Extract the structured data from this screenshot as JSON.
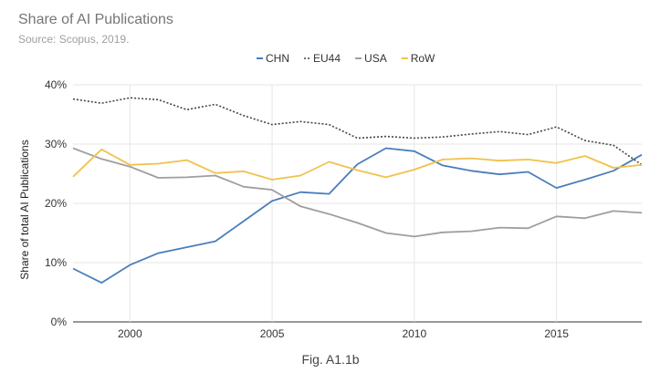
{
  "title": "Share of AI Publications",
  "subtitle": "Source: Scopus, 2019.",
  "caption": "Fig. A1.1b",
  "chart_data": {
    "type": "line",
    "ylabel": "Share of total AI Publications",
    "xlabel": "",
    "xlim": [
      1998,
      2018
    ],
    "ylim": [
      0,
      40
    ],
    "x_ticks": [
      2000,
      2005,
      2010,
      2015
    ],
    "y_ticks": [
      "0%",
      "10%",
      "20%",
      "30%",
      "40%"
    ],
    "grid": true,
    "legend_position": "top",
    "x": [
      1998,
      1999,
      2000,
      2001,
      2002,
      2003,
      2004,
      2005,
      2006,
      2007,
      2008,
      2009,
      2010,
      2011,
      2012,
      2013,
      2014,
      2015,
      2016,
      2017,
      2018
    ],
    "series": [
      {
        "name": "CHN",
        "color": "#4a7ebb",
        "dash": "solid",
        "values": [
          9.0,
          6.6,
          9.6,
          11.6,
          12.6,
          13.6,
          17.0,
          20.4,
          21.9,
          21.6,
          26.6,
          29.3,
          28.8,
          26.4,
          25.5,
          24.9,
          25.3,
          22.6,
          24.0,
          25.5,
          28.2
        ]
      },
      {
        "name": "EU44",
        "color": "#444444",
        "dash": "dotted",
        "values": [
          37.6,
          36.9,
          37.8,
          37.5,
          35.8,
          36.7,
          34.8,
          33.3,
          33.8,
          33.3,
          31.0,
          31.3,
          31.0,
          31.2,
          31.7,
          32.1,
          31.6,
          32.9,
          30.6,
          29.8,
          26.5
        ]
      },
      {
        "name": "USA",
        "color": "#9e9e9e",
        "dash": "solid",
        "values": [
          29.3,
          27.5,
          26.2,
          24.3,
          24.4,
          24.7,
          22.8,
          22.3,
          19.5,
          18.2,
          16.7,
          15.0,
          14.4,
          15.1,
          15.3,
          15.9,
          15.8,
          17.8,
          17.5,
          18.7,
          18.4
        ]
      },
      {
        "name": "RoW",
        "color": "#f0c24b",
        "dash": "solid",
        "values": [
          24.5,
          29.1,
          26.5,
          26.7,
          27.3,
          25.1,
          25.4,
          24.0,
          24.7,
          27.0,
          25.6,
          24.4,
          25.7,
          27.4,
          27.6,
          27.2,
          27.4,
          26.8,
          28.0,
          26.0,
          26.5
        ]
      }
    ]
  }
}
